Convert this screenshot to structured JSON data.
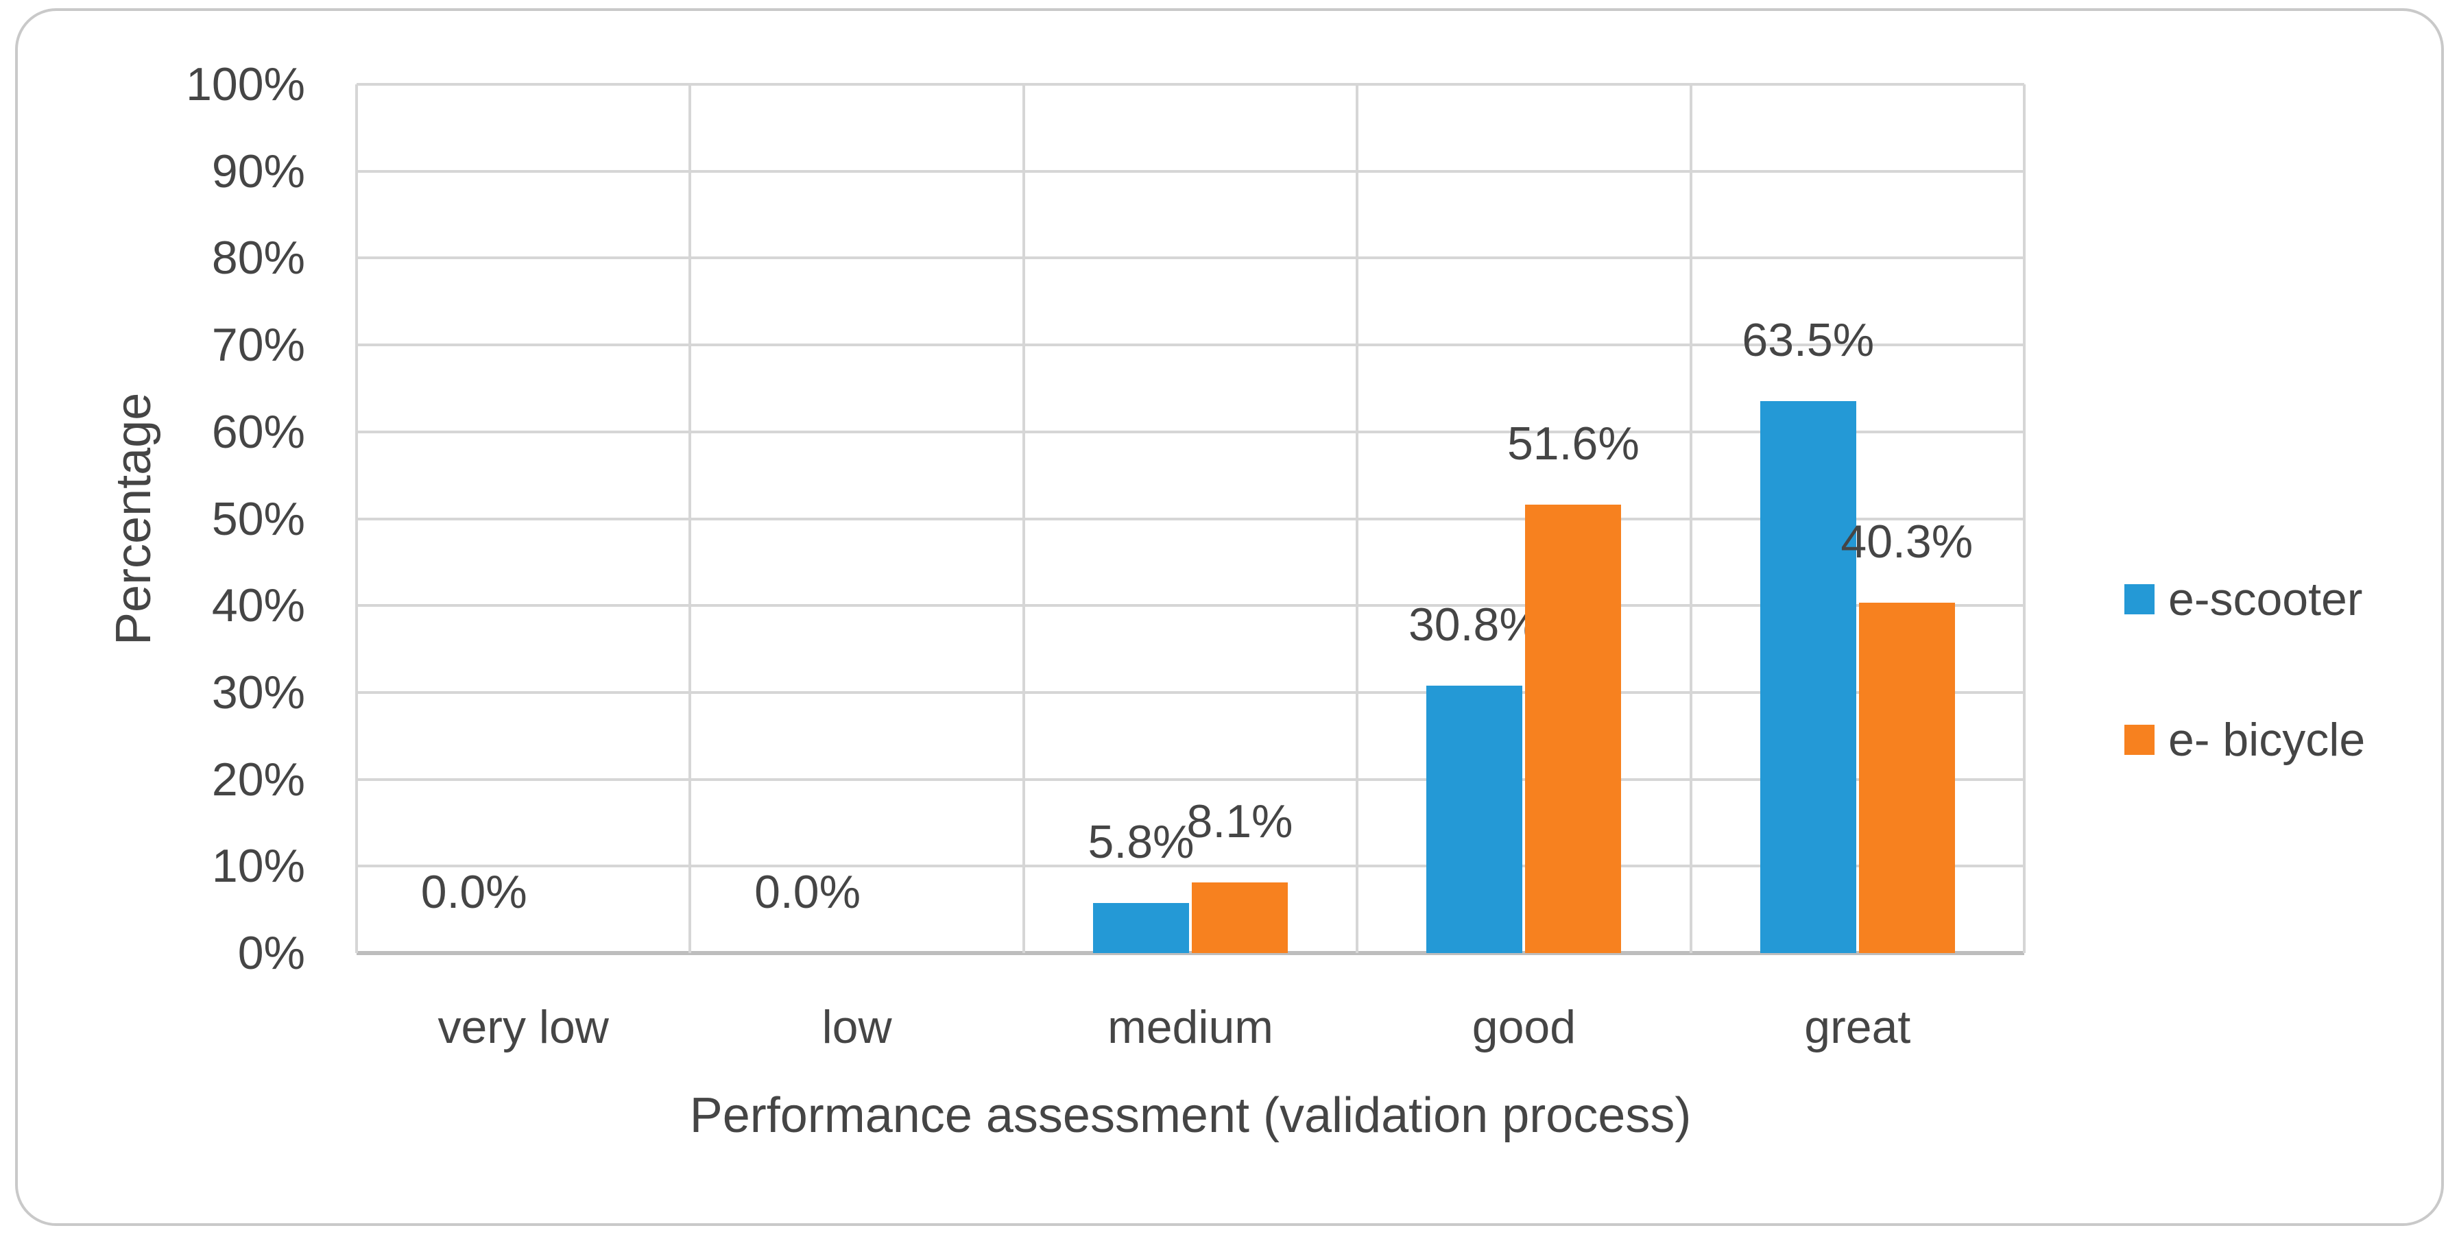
{
  "chart_data": {
    "type": "bar",
    "categories": [
      "very low",
      "low",
      "medium",
      "good",
      "great"
    ],
    "series": [
      {
        "name": "e-scooter",
        "color": "#2499D6",
        "values": [
          0.0,
          0.0,
          5.8,
          30.8,
          63.5
        ],
        "labels": [
          "0.0%",
          "0.0%",
          "5.8%",
          "30.8%",
          "63.5%"
        ]
      },
      {
        "name": "e- bicycle",
        "color": "#F7811F",
        "values": [
          0.0,
          0.0,
          8.1,
          51.6,
          40.3
        ],
        "labels": [
          "",
          "",
          "8.1%",
          "51.6%",
          "40.3%"
        ]
      }
    ],
    "title": "",
    "xlabel": "Performance assessment (validation process)",
    "ylabel": "Percentage",
    "ylim": [
      0,
      100
    ],
    "ytick_step": 10,
    "ytick_suffix": "%",
    "grid": true,
    "legend_position": "right"
  },
  "colors": {
    "gridline": "#D6D6D6",
    "axis_line": "#BDBDBD",
    "frame_border": "#C9C9C9",
    "text": "#454545"
  }
}
